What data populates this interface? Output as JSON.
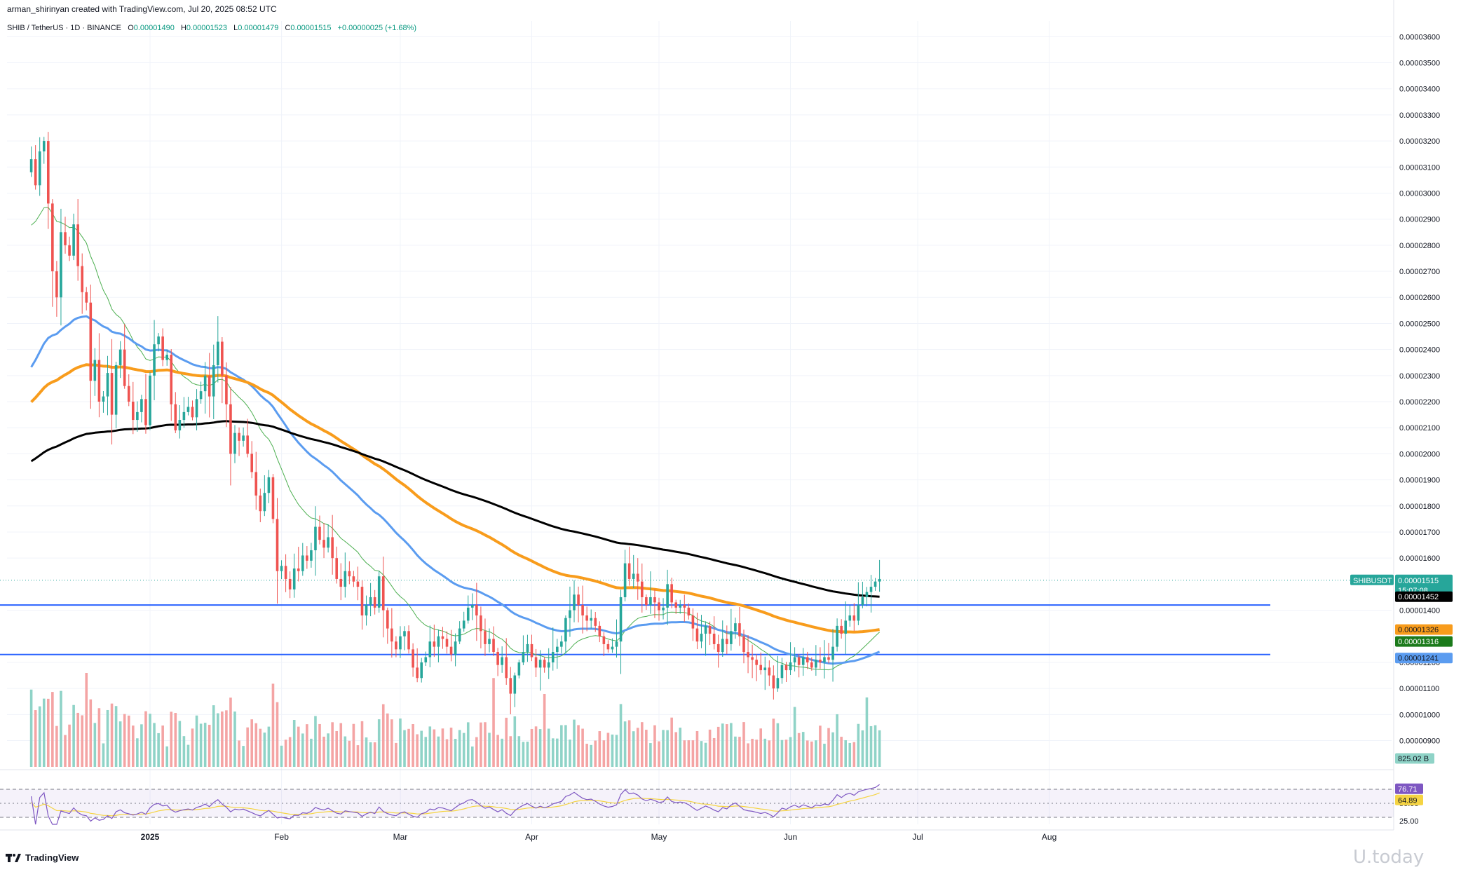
{
  "header": {
    "author_line": "arman_shirinyan created with TradingView.com, Jul 20, 2025 08:52 UTC",
    "symbol": "SHIB / TetherUS · 1D · BINANCE",
    "open_label": "O",
    "open": "0.00001490",
    "high_label": "H",
    "high": "0.00001523",
    "low_label": "L",
    "low": "0.00001479",
    "close_label": "C",
    "close": "0.00001515",
    "change": "+0.00000025 (+1.68%)"
  },
  "footer": {
    "logo_text": "TradingView",
    "watermark": "U.today"
  },
  "colors": {
    "up": "#26a69a",
    "down": "#ef5350",
    "vol_up": "#8fd3c7",
    "vol_down": "#f4a4a4",
    "ma_thin": "#4caf50",
    "ma_blue": "#5b9cf0",
    "ma_orange": "#f89c1c",
    "ma_black": "#000000",
    "hline": "#2962ff",
    "rsi": "#7e57c2",
    "rsi_ma": "#f5d442"
  },
  "chart_data": [
    {
      "type": "candlestick",
      "symbol": "SHIBUSDT",
      "timeframe": "1D",
      "ylim": [
        8.1e-06,
        3.66e-05
      ],
      "y_ticks": [
        "0.00003600",
        "0.00003500",
        "0.00003400",
        "0.00003300",
        "0.00003200",
        "0.00003100",
        "0.00003000",
        "0.00002900",
        "0.00002800",
        "0.00002700",
        "0.00002600",
        "0.00002500",
        "0.00002400",
        "0.00002300",
        "0.00002200",
        "0.00002100",
        "0.00002000",
        "0.00001900",
        "0.00001800",
        "0.00001700",
        "0.00001600",
        "0.00001400",
        "0.00001200",
        "0.00001100",
        "0.00001000",
        "0.00000900"
      ],
      "x_labels": [
        "2025",
        "Feb",
        "Mar",
        "Apr",
        "May",
        "Jun",
        "Jul",
        "Aug"
      ],
      "x_label_days": [
        0,
        31,
        59,
        90,
        120,
        151,
        181,
        212
      ],
      "start_day": -28,
      "end_day": 200,
      "closes": [
        3.13e-05,
        3.03e-05,
        3.16e-05,
        3.2e-05,
        2.96e-05,
        2.7e-05,
        2.6e-05,
        2.85e-05,
        2.8e-05,
        2.76e-05,
        2.88e-05,
        2.72e-05,
        2.62e-05,
        2.58e-05,
        2.28e-05,
        2.36e-05,
        2.2e-05,
        2.22e-05,
        2.31e-05,
        2.15e-05,
        2.34e-05,
        2.4e-05,
        2.26e-05,
        2.2e-05,
        2.13e-05,
        2.16e-05,
        2.21e-05,
        2.11e-05,
        2.3e-05,
        2.42e-05,
        2.45e-05,
        2.36e-05,
        2.38e-05,
        2.19e-05,
        2.09e-05,
        2.13e-05,
        2.16e-05,
        2.18e-05,
        2.14e-05,
        2.21e-05,
        2.24e-05,
        2.3e-05,
        2.22e-05,
        2.34e-05,
        2.43e-05,
        2.3e-05,
        2.19e-05,
        2e-05,
        2.08e-05,
        2.05e-05,
        2.07e-05,
        2e-05,
        1.93e-05,
        1.84e-05,
        1.78e-05,
        1.85e-05,
        1.91e-05,
        1.75e-05,
        1.55e-05,
        1.57e-05,
        1.52e-05,
        1.48e-05,
        1.56e-05,
        1.55e-05,
        1.61e-05,
        1.59e-05,
        1.63e-05,
        1.72e-05,
        1.67e-05,
        1.64e-05,
        1.68e-05,
        1.6e-05,
        1.52e-05,
        1.49e-05,
        1.55e-05,
        1.53e-05,
        1.51e-05,
        1.49e-05,
        1.38e-05,
        1.42e-05,
        1.45e-05,
        1.41e-05,
        1.53e-05,
        1.4e-05,
        1.33e-05,
        1.28e-05,
        1.25e-05,
        1.3e-05,
        1.32e-05,
        1.25e-05,
        1.18e-05,
        1.14e-05,
        1.2e-05,
        1.22e-05,
        1.28e-05,
        1.26e-05,
        1.3e-05,
        1.29e-05,
        1.26e-05,
        1.23e-05,
        1.28e-05,
        1.33e-05,
        1.36e-05,
        1.41e-05,
        1.42e-05,
        1.38e-05,
        1.32e-05,
        1.27e-05,
        1.29e-05,
        1.24e-05,
        1.19e-05,
        1.22e-05,
        1.14e-05,
        1.08e-05,
        1.15e-05,
        1.2e-05,
        1.24e-05,
        1.27e-05,
        1.22e-05,
        1.18e-05,
        1.21e-05,
        1.18e-05,
        1.2e-05,
        1.24e-05,
        1.26e-05,
        1.28e-05,
        1.37e-05,
        1.4e-05,
        1.46e-05,
        1.42e-05,
        1.38e-05,
        1.36e-05,
        1.37e-05,
        1.34e-05,
        1.3e-05,
        1.27e-05,
        1.25e-05,
        1.26e-05,
        1.28e-05,
        1.45e-05,
        1.58e-05,
        1.52e-05,
        1.54e-05,
        1.51e-05,
        1.45e-05,
        1.42e-05,
        1.45e-05,
        1.43e-05,
        1.4e-05,
        1.41e-05,
        1.5e-05,
        1.43e-05,
        1.41e-05,
        1.42e-05,
        1.41e-05,
        1.38e-05,
        1.33e-05,
        1.28e-05,
        1.31e-05,
        1.34e-05,
        1.31e-05,
        1.27e-05,
        1.24e-05,
        1.29e-05,
        1.27e-05,
        1.32e-05,
        1.35e-05,
        1.3e-05,
        1.24e-05,
        1.22e-05,
        1.21e-05,
        1.19e-05,
        1.17e-05,
        1.18e-05,
        1.15e-05,
        1.1e-05,
        1.14e-05,
        1.19e-05,
        1.17e-05,
        1.2e-05,
        1.22e-05,
        1.19e-05,
        1.22e-05,
        1.2e-05,
        1.18e-05,
        1.21e-05,
        1.2e-05,
        1.22e-05,
        1.21e-05,
        1.26e-05,
        1.34e-05,
        1.31e-05,
        1.36e-05,
        1.38e-05,
        1.36e-05,
        1.42e-05,
        1.45e-05,
        1.47e-05,
        1.49e-05,
        1.51e-05,
        1.52e-05
      ],
      "last_close": 1.515e-05,
      "horizontal_lines": [
        1.42e-05,
        1.23e-05
      ],
      "price_labels": [
        {
          "name": "SHIBUSDT",
          "value": "0.00001515",
          "countdown": "15:07:08",
          "color": "#26a69a"
        },
        {
          "value": "0.00001452",
          "color": "#000000"
        },
        {
          "value": "0.00001326",
          "color": "#f89c1c"
        },
        {
          "value": "0.00001316",
          "color": "#1b7a1b"
        },
        {
          "value": "0.00001241",
          "color": "#5b9cf0"
        }
      ],
      "moving_averages": [
        {
          "color": "#4caf50",
          "last": 1.316e-05,
          "width": 1
        },
        {
          "color": "#5b9cf0",
          "last": 1.241e-05,
          "width": 3
        },
        {
          "color": "#f89c1c",
          "last": 1.326e-05,
          "width": 4
        },
        {
          "color": "#000000",
          "last": 1.452e-05,
          "width": 3
        }
      ]
    },
    {
      "type": "bar",
      "name": "Volume",
      "last_value_label": "825.02 B"
    },
    {
      "type": "line",
      "name": "RSI",
      "ylim": [
        20,
        90
      ],
      "levels": [
        70,
        50,
        30
      ],
      "tick_labels": [
        "50.00",
        "25.00"
      ],
      "last_rsi": "76.71",
      "last_rsi_ma": "64.89"
    }
  ]
}
